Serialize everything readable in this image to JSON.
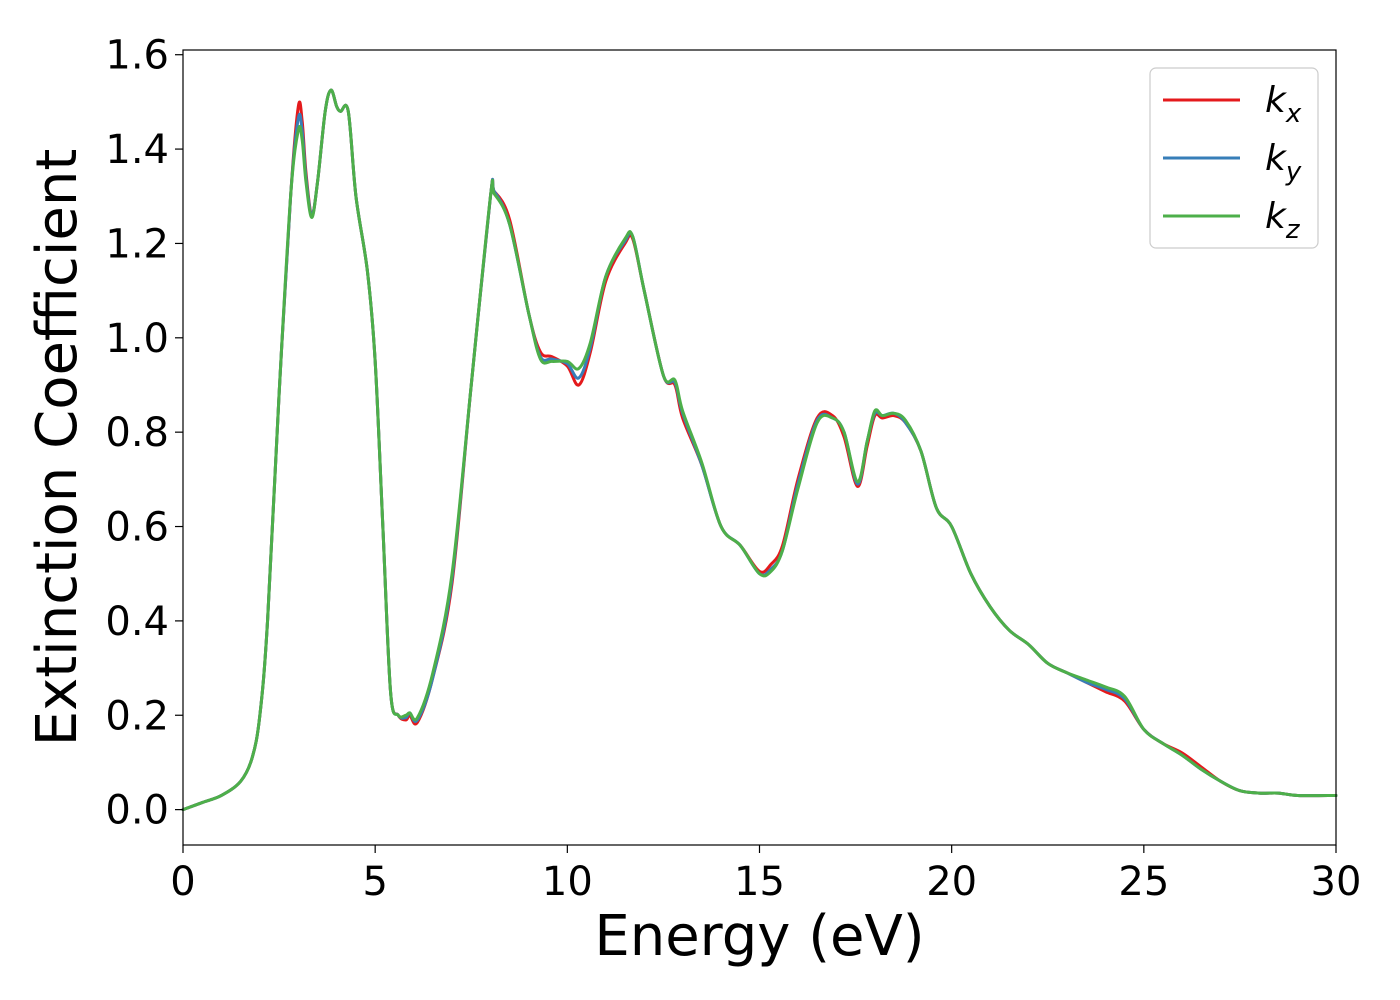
{
  "chart_data": {
    "type": "line",
    "title": "",
    "xlabel": "Energy (eV)",
    "ylabel": "Extinction Coefficient",
    "xlim": [
      0,
      30
    ],
    "ylim": [
      -0.075,
      1.61
    ],
    "xticks": [
      0,
      5,
      10,
      15,
      20,
      25,
      30
    ],
    "xtick_labels": [
      "0",
      "5",
      "10",
      "15",
      "20",
      "25",
      "30"
    ],
    "yticks": [
      0.0,
      0.2,
      0.4,
      0.6,
      0.8,
      1.0,
      1.2,
      1.4,
      1.6
    ],
    "ytick_labels": [
      "0.0",
      "0.2",
      "0.4",
      "0.6",
      "0.8",
      "1.0",
      "1.2",
      "1.4",
      "1.6"
    ],
    "grid": false,
    "legend_position": "top-right",
    "series": [
      {
        "name": "k_x",
        "label_base": "k",
        "label_sub": "x",
        "color": "#e41a1c",
        "x": [
          0,
          0.5,
          1.0,
          1.5,
          1.8,
          2.0,
          2.2,
          2.5,
          2.8,
          3.0,
          3.1,
          3.2,
          3.35,
          3.5,
          3.7,
          3.85,
          4.0,
          4.1,
          4.3,
          4.5,
          4.8,
          5.0,
          5.2,
          5.4,
          5.6,
          5.8,
          5.9,
          6.1,
          6.5,
          7.0,
          7.5,
          8.0,
          8.1,
          8.5,
          9.0,
          9.3,
          9.6,
          10.0,
          10.3,
          10.6,
          11.0,
          11.5,
          11.7,
          12.0,
          12.5,
          12.8,
          13.0,
          13.5,
          14.0,
          14.5,
          15.0,
          15.3,
          15.6,
          16.0,
          16.5,
          16.9,
          17.2,
          17.55,
          17.8,
          18.0,
          18.2,
          18.5,
          18.8,
          19.2,
          19.6,
          20.0,
          20.5,
          21.0,
          21.5,
          22.0,
          22.5,
          23.0,
          23.5,
          24.0,
          24.5,
          25.0,
          25.5,
          26.0,
          26.5,
          27.0,
          27.5,
          28.0,
          28.5,
          29.0,
          30.0
        ],
        "y": [
          0.0,
          0.015,
          0.03,
          0.06,
          0.11,
          0.2,
          0.4,
          0.88,
          1.3,
          1.49,
          1.46,
          1.35,
          1.26,
          1.33,
          1.48,
          1.525,
          1.49,
          1.48,
          1.48,
          1.3,
          1.14,
          0.95,
          0.6,
          0.25,
          0.2,
          0.19,
          0.2,
          0.185,
          0.28,
          0.48,
          0.9,
          1.3,
          1.31,
          1.25,
          1.05,
          0.97,
          0.96,
          0.94,
          0.9,
          0.97,
          1.12,
          1.2,
          1.21,
          1.1,
          0.92,
          0.9,
          0.83,
          0.73,
          0.6,
          0.56,
          0.505,
          0.52,
          0.56,
          0.7,
          0.83,
          0.835,
          0.79,
          0.685,
          0.77,
          0.835,
          0.83,
          0.835,
          0.82,
          0.76,
          0.64,
          0.6,
          0.5,
          0.43,
          0.38,
          0.35,
          0.31,
          0.29,
          0.27,
          0.25,
          0.23,
          0.17,
          0.14,
          0.12,
          0.09,
          0.06,
          0.04,
          0.035,
          0.035,
          0.03,
          0.03
        ]
      },
      {
        "name": "k_y",
        "label_base": "k",
        "label_sub": "y",
        "color": "#377eb8",
        "x": [
          0,
          0.5,
          1.0,
          1.5,
          1.8,
          2.0,
          2.2,
          2.5,
          2.8,
          3.0,
          3.1,
          3.2,
          3.35,
          3.5,
          3.7,
          3.85,
          4.0,
          4.1,
          4.3,
          4.5,
          4.8,
          5.0,
          5.2,
          5.4,
          5.6,
          5.8,
          5.9,
          6.1,
          6.5,
          7.0,
          7.5,
          8.0,
          8.1,
          8.5,
          9.0,
          9.3,
          9.6,
          10.0,
          10.3,
          10.6,
          11.0,
          11.5,
          11.7,
          12.0,
          12.5,
          12.8,
          13.0,
          13.5,
          14.0,
          14.5,
          15.0,
          15.3,
          15.6,
          16.0,
          16.5,
          16.9,
          17.2,
          17.55,
          17.8,
          18.0,
          18.2,
          18.5,
          18.8,
          19.2,
          19.6,
          20.0,
          20.5,
          21.0,
          21.5,
          22.0,
          22.5,
          23.0,
          23.5,
          24.0,
          24.5,
          25.0,
          25.5,
          26.0,
          26.5,
          27.0,
          27.5,
          28.0,
          28.5,
          29.0,
          30.0
        ],
        "y": [
          0.0,
          0.015,
          0.03,
          0.06,
          0.11,
          0.2,
          0.4,
          0.88,
          1.3,
          1.465,
          1.44,
          1.34,
          1.26,
          1.33,
          1.48,
          1.525,
          1.49,
          1.48,
          1.48,
          1.3,
          1.14,
          0.95,
          0.6,
          0.25,
          0.2,
          0.195,
          0.205,
          0.19,
          0.28,
          0.49,
          0.9,
          1.3,
          1.31,
          1.24,
          1.05,
          0.96,
          0.955,
          0.945,
          0.915,
          0.98,
          1.13,
          1.205,
          1.215,
          1.1,
          0.92,
          0.905,
          0.84,
          0.73,
          0.6,
          0.56,
          0.5,
          0.51,
          0.55,
          0.69,
          0.825,
          0.83,
          0.8,
          0.69,
          0.78,
          0.84,
          0.835,
          0.84,
          0.82,
          0.76,
          0.64,
          0.6,
          0.5,
          0.43,
          0.38,
          0.35,
          0.31,
          0.29,
          0.27,
          0.255,
          0.235,
          0.17,
          0.14,
          0.115,
          0.085,
          0.06,
          0.04,
          0.035,
          0.035,
          0.03,
          0.03
        ]
      },
      {
        "name": "k_z",
        "label_base": "k",
        "label_sub": "z",
        "color": "#4daf4a",
        "x": [
          0,
          0.5,
          1.0,
          1.5,
          1.8,
          2.0,
          2.2,
          2.5,
          2.8,
          3.0,
          3.1,
          3.2,
          3.35,
          3.5,
          3.7,
          3.85,
          4.0,
          4.1,
          4.3,
          4.5,
          4.8,
          5.0,
          5.2,
          5.4,
          5.6,
          5.8,
          5.9,
          6.1,
          6.5,
          7.0,
          7.5,
          8.0,
          8.1,
          8.5,
          9.0,
          9.3,
          9.6,
          10.0,
          10.3,
          10.6,
          11.0,
          11.5,
          11.7,
          12.0,
          12.5,
          12.8,
          13.0,
          13.5,
          14.0,
          14.5,
          15.0,
          15.3,
          15.6,
          16.0,
          16.5,
          16.9,
          17.2,
          17.55,
          17.8,
          18.0,
          18.2,
          18.5,
          18.8,
          19.2,
          19.6,
          20.0,
          20.5,
          21.0,
          21.5,
          22.0,
          22.5,
          23.0,
          23.5,
          24.0,
          24.5,
          25.0,
          25.5,
          26.0,
          26.5,
          27.0,
          27.5,
          28.0,
          28.5,
          29.0,
          30.0
        ],
        "y": [
          0.0,
          0.015,
          0.03,
          0.06,
          0.11,
          0.2,
          0.4,
          0.88,
          1.3,
          1.44,
          1.42,
          1.33,
          1.255,
          1.33,
          1.48,
          1.525,
          1.49,
          1.48,
          1.48,
          1.3,
          1.14,
          0.95,
          0.6,
          0.25,
          0.2,
          0.2,
          0.205,
          0.195,
          0.29,
          0.5,
          0.9,
          1.3,
          1.305,
          1.24,
          1.05,
          0.955,
          0.95,
          0.95,
          0.935,
          0.99,
          1.13,
          1.21,
          1.215,
          1.1,
          0.92,
          0.91,
          0.845,
          0.735,
          0.6,
          0.56,
          0.5,
          0.505,
          0.55,
          0.68,
          0.82,
          0.83,
          0.8,
          0.695,
          0.78,
          0.845,
          0.835,
          0.84,
          0.825,
          0.76,
          0.64,
          0.6,
          0.5,
          0.43,
          0.38,
          0.35,
          0.31,
          0.29,
          0.275,
          0.26,
          0.24,
          0.17,
          0.14,
          0.115,
          0.085,
          0.06,
          0.04,
          0.035,
          0.035,
          0.03,
          0.03
        ]
      }
    ]
  }
}
